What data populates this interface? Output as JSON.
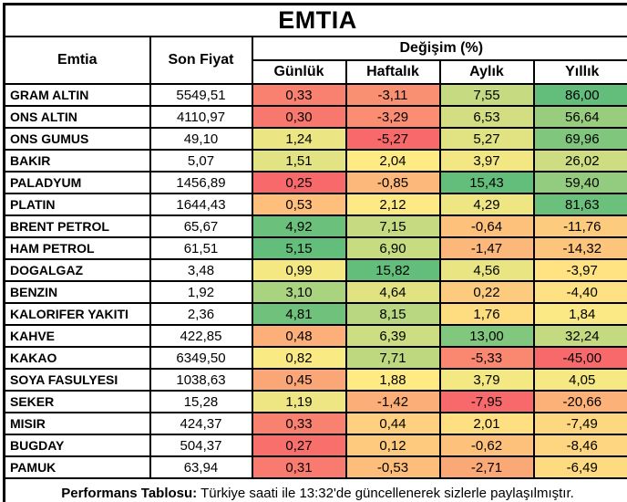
{
  "chart_data": {
    "type": "table",
    "title": "EMTIA",
    "headers": {
      "commodity": "Emtia",
      "last_price": "Son Fiyat",
      "change_group": "Değişim (%)",
      "periods": [
        "Günlük",
        "Haftalık",
        "Aylık",
        "Yıllık"
      ]
    },
    "rows": [
      {
        "name": "GRAM ALTIN",
        "last_price": "5549,51",
        "changes": [
          0.33,
          -3.11,
          7.55,
          86.0
        ]
      },
      {
        "name": "ONS ALTIN",
        "last_price": "4110,97",
        "changes": [
          0.3,
          -3.29,
          6.53,
          56.64
        ]
      },
      {
        "name": "ONS GUMUS",
        "last_price": "49,10",
        "changes": [
          1.24,
          -5.27,
          5.27,
          69.96
        ]
      },
      {
        "name": "BAKIR",
        "last_price": "5,07",
        "changes": [
          1.51,
          2.04,
          3.97,
          26.02
        ]
      },
      {
        "name": "PALADYUM",
        "last_price": "1456,89",
        "changes": [
          0.25,
          -0.85,
          15.43,
          59.4
        ]
      },
      {
        "name": "PLATIN",
        "last_price": "1644,43",
        "changes": [
          0.53,
          2.12,
          4.29,
          81.63
        ]
      },
      {
        "name": "BRENT PETROL",
        "last_price": "65,67",
        "changes": [
          4.92,
          7.15,
          -0.64,
          -11.76
        ]
      },
      {
        "name": "HAM PETROL",
        "last_price": "61,51",
        "changes": [
          5.15,
          6.9,
          -1.47,
          -14.32
        ]
      },
      {
        "name": "DOGALGAZ",
        "last_price": "3,48",
        "changes": [
          0.99,
          15.82,
          4.56,
          -3.97
        ]
      },
      {
        "name": "BENZIN",
        "last_price": "1,92",
        "changes": [
          3.1,
          4.64,
          0.22,
          -4.4
        ]
      },
      {
        "name": "KALORIFER YAKITI",
        "last_price": "2,36",
        "changes": [
          4.81,
          8.15,
          1.76,
          1.84
        ]
      },
      {
        "name": "KAHVE",
        "last_price": "422,85",
        "changes": [
          0.48,
          6.39,
          13.0,
          32.24
        ]
      },
      {
        "name": "KAKAO",
        "last_price": "6349,50",
        "changes": [
          0.82,
          7.71,
          -5.33,
          -45.0
        ]
      },
      {
        "name": "SOYA FASULYESI",
        "last_price": "1038,63",
        "changes": [
          0.45,
          1.88,
          3.79,
          4.05
        ]
      },
      {
        "name": "SEKER",
        "last_price": "15,28",
        "changes": [
          1.19,
          -1.42,
          -7.95,
          -20.66
        ]
      },
      {
        "name": "MISIR",
        "last_price": "424,37",
        "changes": [
          0.33,
          0.44,
          2.01,
          -7.49
        ]
      },
      {
        "name": "BUGDAY",
        "last_price": "504,37",
        "changes": [
          0.27,
          0.12,
          -0.62,
          -8.46
        ]
      },
      {
        "name": "PAMUK",
        "last_price": "63,94",
        "changes": [
          0.31,
          -0.53,
          -2.71,
          -6.49
        ]
      }
    ],
    "number_format": "comma-decimal, 2 digits",
    "heatmap": {
      "min_color": "#F8696B",
      "mid_color": "#FFEB84",
      "max_color": "#63BE7B",
      "midpoint": "50th percentile per column"
    },
    "footer": {
      "bold": "Performans Tablosu:",
      "text": "Türkiye saati ile 13:32'de güncellenerek sizlerle paylaşılmıştır."
    },
    "colors": {
      "border": "#000000",
      "background": "#FFFFFF",
      "text": "#000000"
    }
  }
}
